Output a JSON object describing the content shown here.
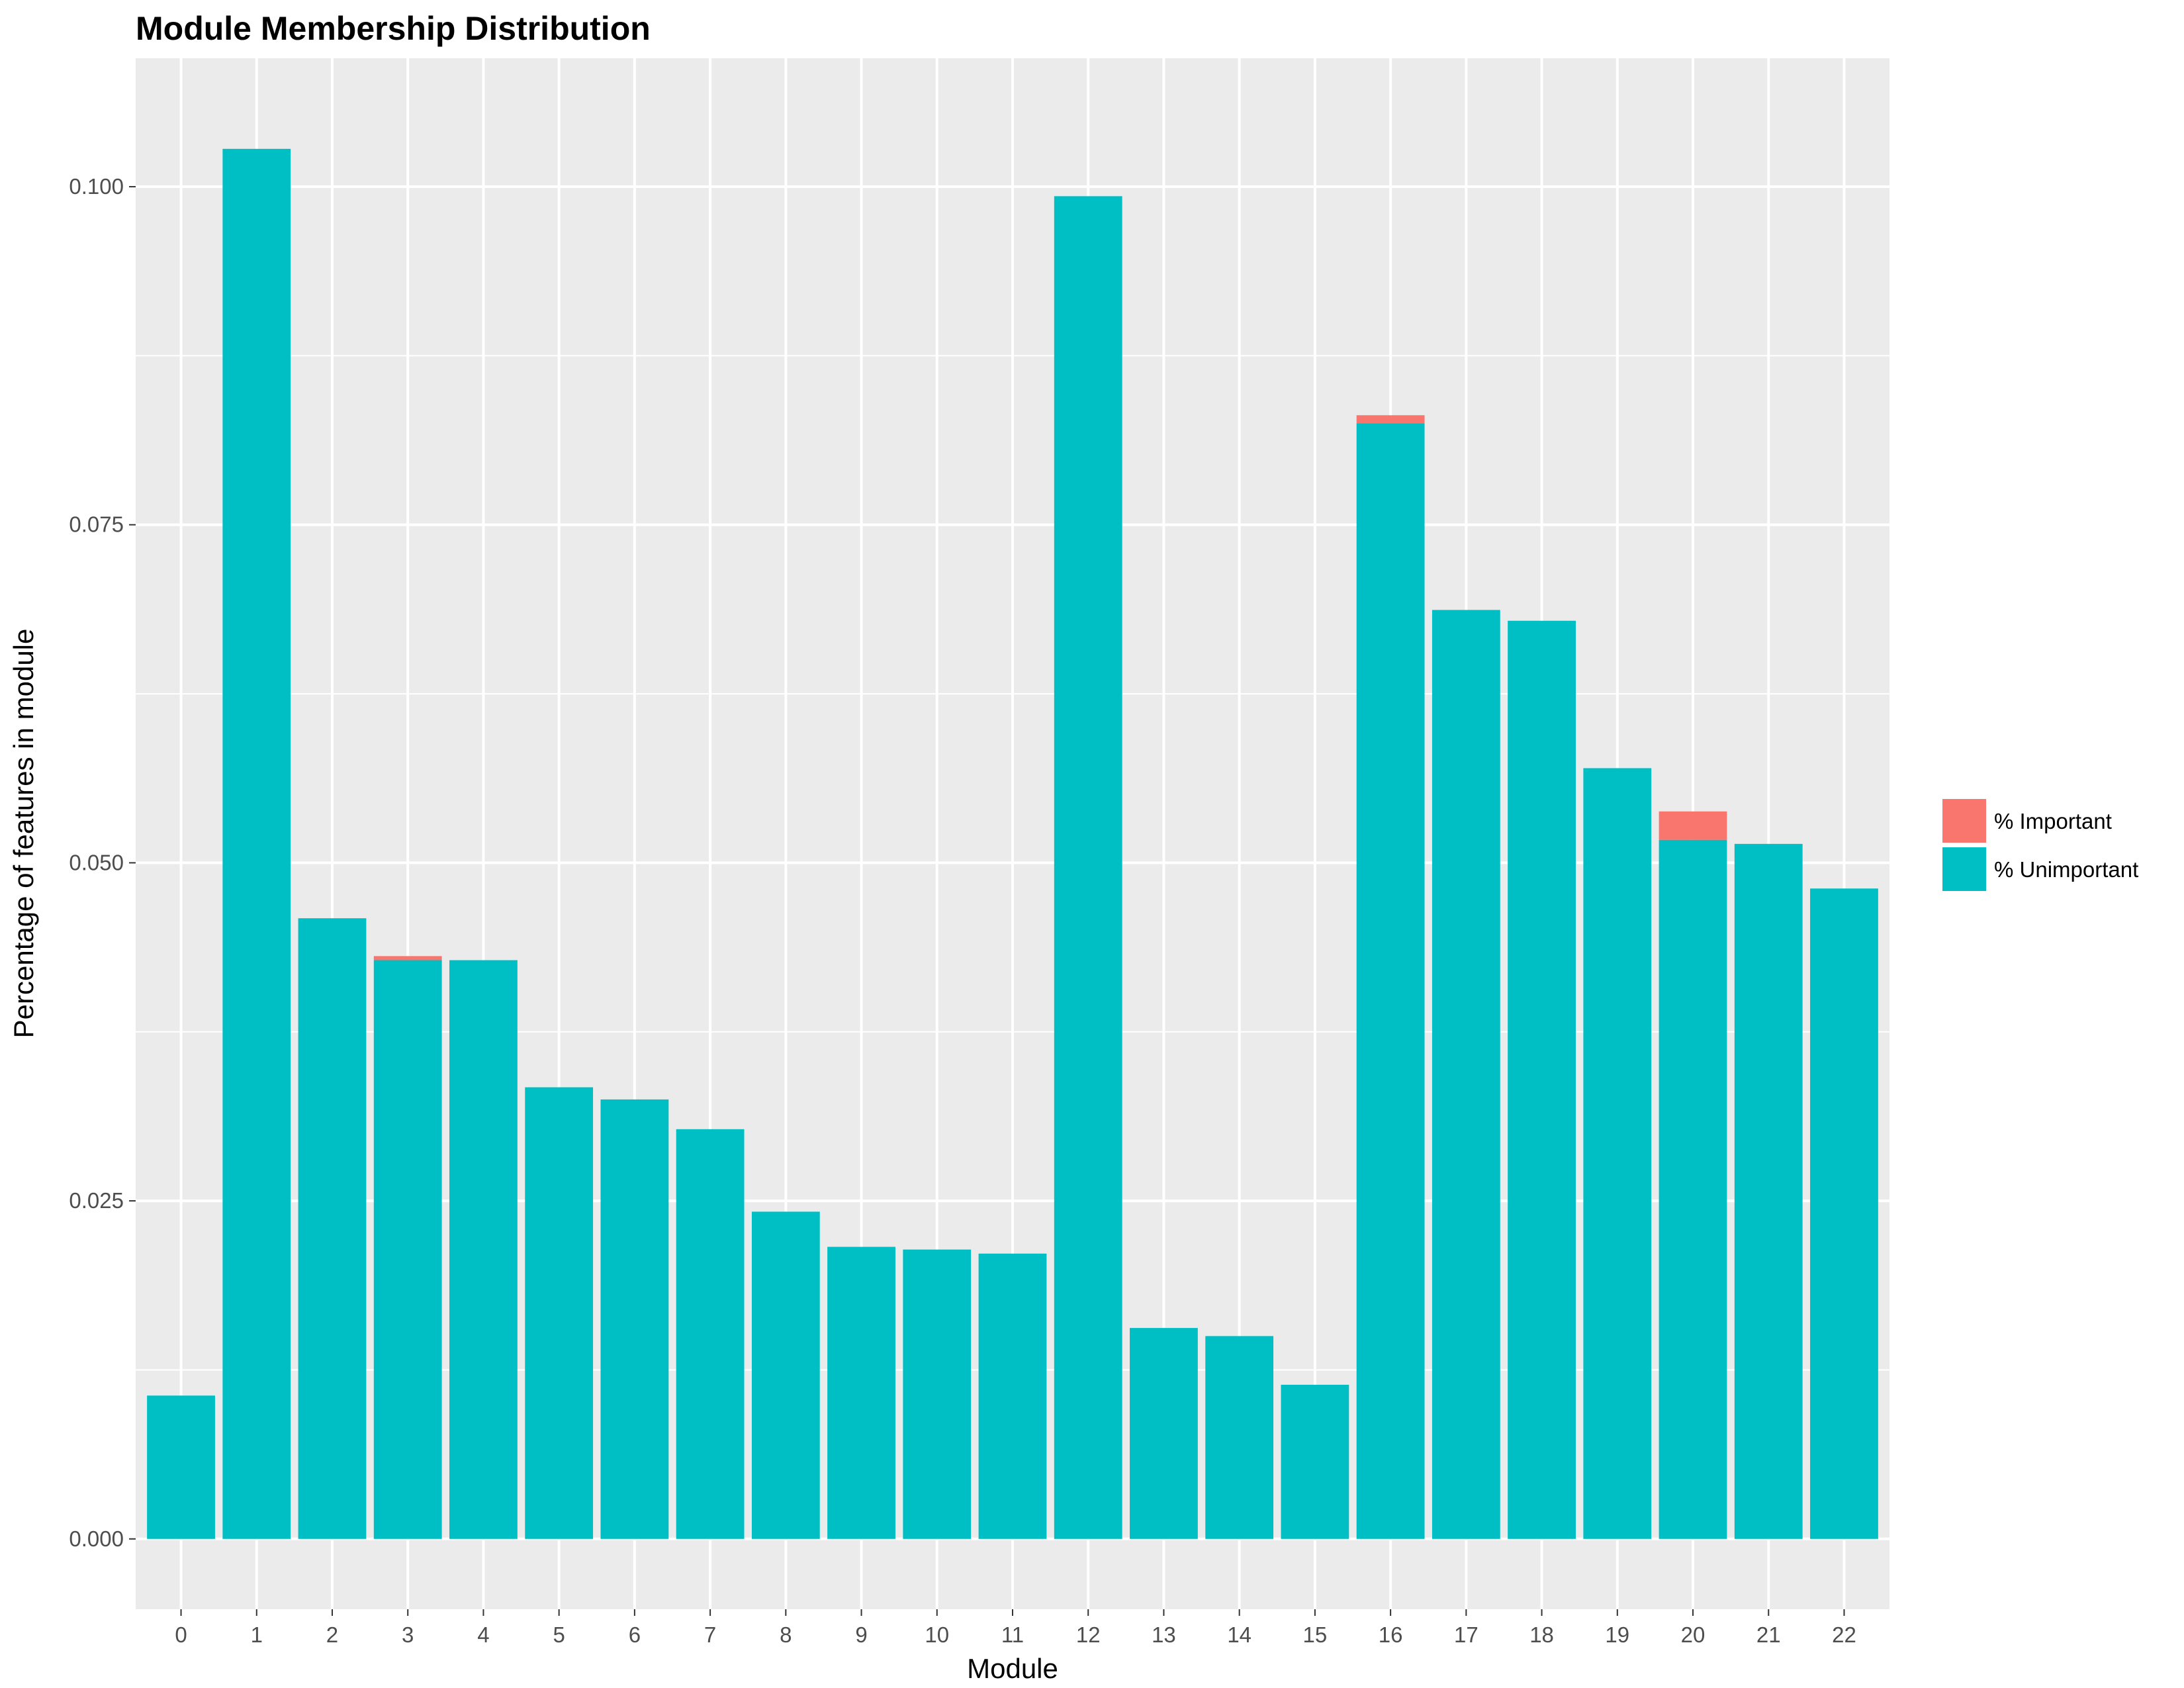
{
  "chart_data": {
    "type": "bar",
    "stacked": true,
    "title": "Module Membership Distribution",
    "xlabel": "Module",
    "ylabel": "Percentage of features in module",
    "categories": [
      "0",
      "1",
      "2",
      "3",
      "4",
      "5",
      "6",
      "7",
      "8",
      "9",
      "10",
      "11",
      "12",
      "13",
      "14",
      "15",
      "16",
      "17",
      "18",
      "19",
      "20",
      "21",
      "22"
    ],
    "series": [
      {
        "name": "% Unimportant",
        "color": "#00BFC4",
        "values": [
          0.0106,
          0.1028,
          0.0459,
          0.0428,
          0.0428,
          0.0334,
          0.0325,
          0.0303,
          0.0242,
          0.0216,
          0.0214,
          0.0211,
          0.0993,
          0.0156,
          0.015,
          0.0114,
          0.0825,
          0.0687,
          0.0679,
          0.057,
          0.0517,
          0.0514,
          0.0481
        ]
      },
      {
        "name": "% Important",
        "color": "#F8766D",
        "values": [
          0,
          0,
          0,
          0.0003,
          0,
          0,
          0,
          0,
          0,
          0,
          0,
          0,
          0,
          0,
          0,
          0,
          0.0006,
          0,
          0,
          0,
          0.0021,
          0,
          0
        ]
      }
    ],
    "ylim": [
      -0.0052,
      0.1095
    ],
    "yticks": [
      0.0,
      0.025,
      0.05,
      0.075,
      0.1
    ],
    "ytick_labels": [
      "0.000",
      "0.025",
      "0.050",
      "0.075",
      "0.100"
    ],
    "legend": {
      "placement": "right",
      "entries": [
        {
          "label": "% Important",
          "color": "#F8766D"
        },
        {
          "label": "% Unimportant",
          "color": "#00BFC4"
        }
      ]
    },
    "grid": true,
    "panel_background": "#EBEBEB",
    "grid_color": "#FFFFFF"
  }
}
